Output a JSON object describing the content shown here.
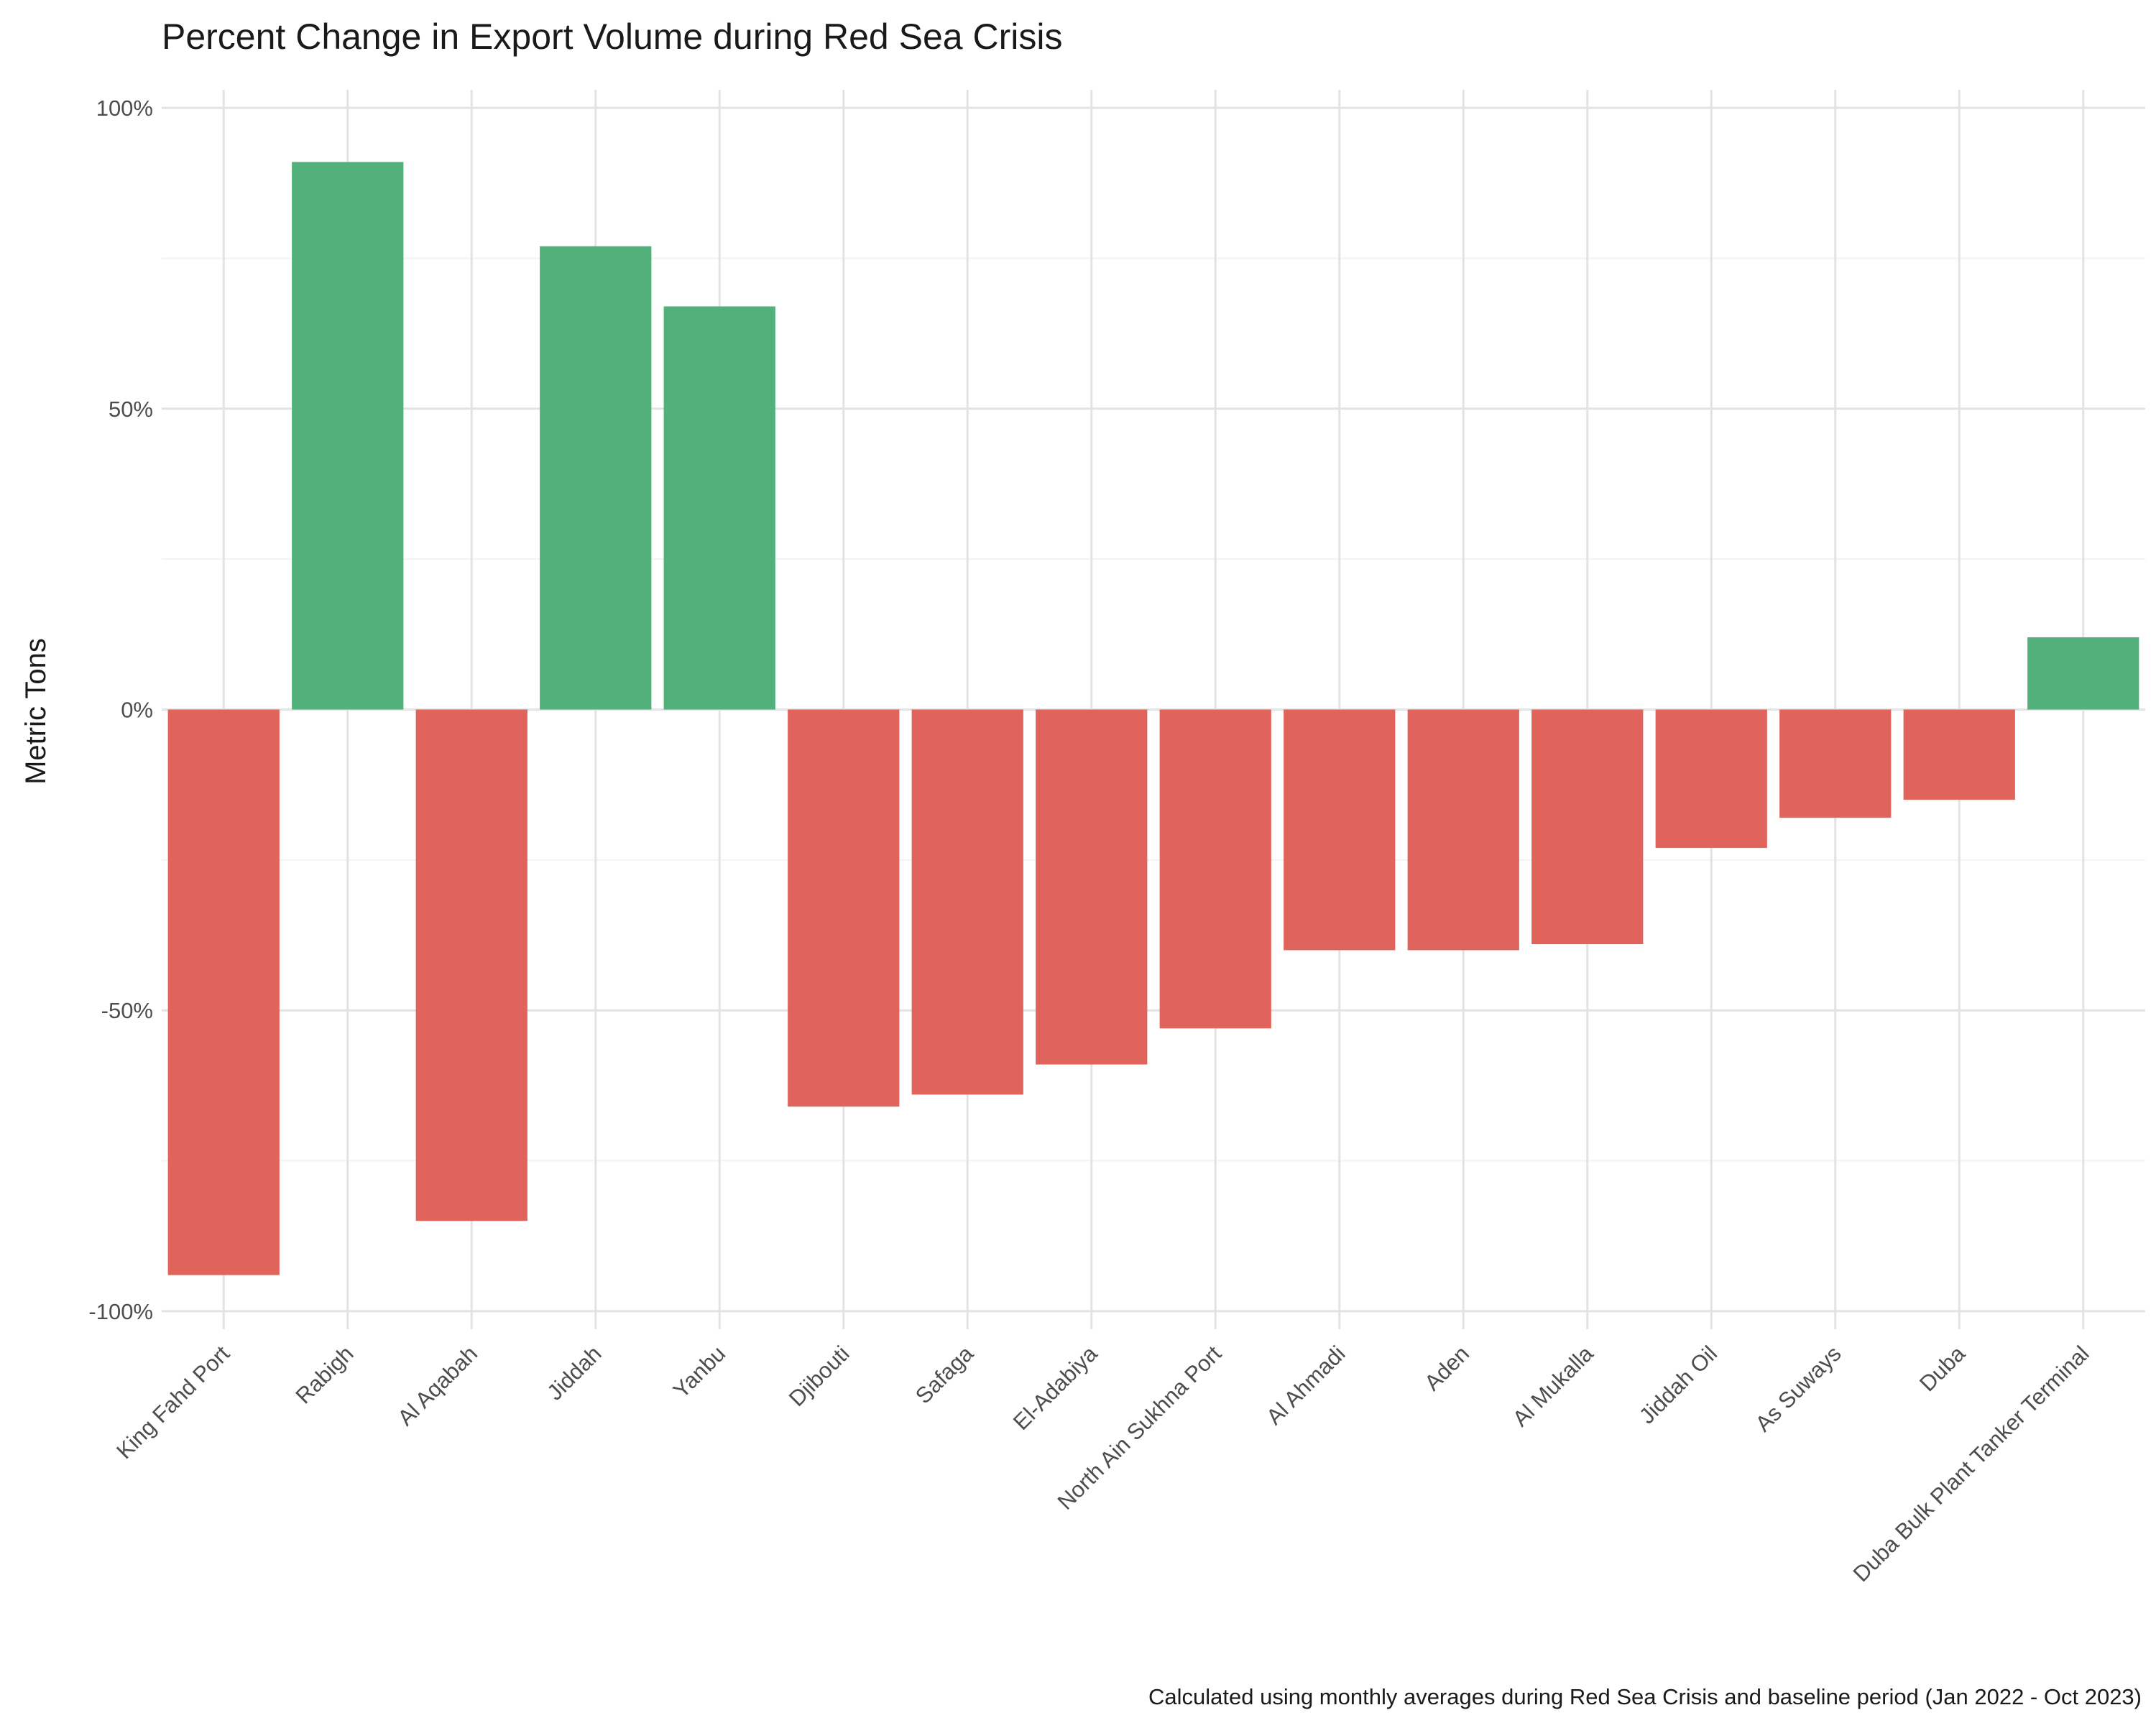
{
  "chart_data": {
    "type": "bar",
    "title": "Percent Change in Export Volume during Red Sea Crisis",
    "xlabel": "",
    "ylabel": "Metric Tons",
    "caption": "Calculated using monthly averages during Red Sea Crisis and baseline period (Jan 2022 - Oct 2023)",
    "categories": [
      "King Fahd Port",
      "Rabigh",
      "Al Aqabah",
      "Jiddah",
      "Yanbu",
      "Djibouti",
      "Safaga",
      "El-Adabiya",
      "North Ain Sukhna Port",
      "Al Ahmadi",
      "Aden",
      "Al Mukalla",
      "Jiddah Oil",
      "As Suways",
      "Duba",
      "Duba Bulk Plant Tanker Terminal"
    ],
    "values": [
      -94,
      91,
      -85,
      77,
      67,
      -66,
      -64,
      -59,
      -53,
      -40,
      -40,
      -39,
      -23,
      -18,
      -15,
      12
    ],
    "ylim": [
      -103,
      103
    ],
    "yticks": [
      -100,
      -50,
      0,
      50,
      100
    ],
    "ytick_labels": [
      "-100%",
      "-50%",
      "0%",
      "50%",
      "100%"
    ],
    "grid": true,
    "legend": "none",
    "colors": {
      "positive": "#52b07a",
      "negative": "#e0645c"
    }
  }
}
